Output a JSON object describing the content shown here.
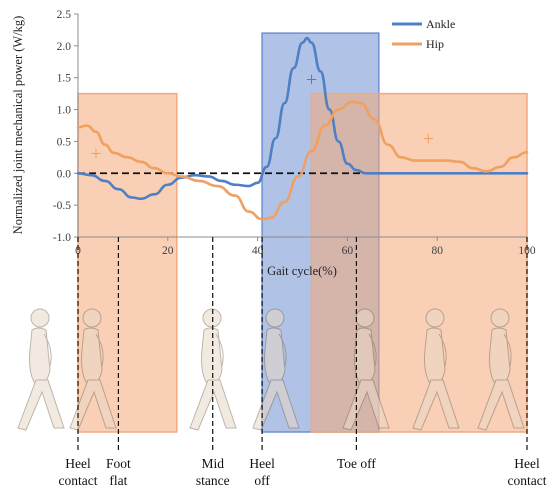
{
  "chart_data": {
    "type": "line",
    "ylabel": "Normalized joint mechanical power (W/kg)",
    "xlabel": "Gait cycle(%)",
    "xlim": [
      0,
      100
    ],
    "ylim": [
      -1.0,
      2.5
    ],
    "x_ticks": [
      "0",
      "20",
      "40",
      "60",
      "80",
      "100"
    ],
    "y_ticks": [
      "-1.0",
      "-0.5",
      "0.0",
      "0.5",
      "1.0",
      "1.5",
      "2.0",
      "2.5"
    ],
    "legend_position": "top-right",
    "grid": false,
    "series": [
      {
        "name": "Ankle",
        "color": "#4f7fc4",
        "points": [
          [
            0,
            0.0
          ],
          [
            3,
            -0.03
          ],
          [
            6,
            -0.12
          ],
          [
            9,
            -0.25
          ],
          [
            12,
            -0.38
          ],
          [
            14,
            -0.4
          ],
          [
            17,
            -0.33
          ],
          [
            20,
            -0.18
          ],
          [
            23,
            -0.07
          ],
          [
            26,
            -0.03
          ],
          [
            29,
            -0.05
          ],
          [
            32,
            -0.12
          ],
          [
            35,
            -0.18
          ],
          [
            38,
            -0.2
          ],
          [
            40,
            -0.15
          ],
          [
            42,
            0.1
          ],
          [
            44,
            0.55
          ],
          [
            46,
            1.1
          ],
          [
            48,
            1.65
          ],
          [
            50,
            2.05
          ],
          [
            51,
            2.12
          ],
          [
            52,
            2.05
          ],
          [
            54,
            1.6
          ],
          [
            56,
            1.0
          ],
          [
            58,
            0.5
          ],
          [
            60,
            0.15
          ],
          [
            62,
            0.05
          ],
          [
            64,
            0.0
          ],
          [
            66,
            0.0
          ],
          [
            70,
            0.0
          ],
          [
            80,
            0.0
          ],
          [
            90,
            0.0
          ],
          [
            100,
            0.0
          ]
        ]
      },
      {
        "name": "Hip",
        "color": "#f0a060",
        "points": [
          [
            0,
            0.72
          ],
          [
            2,
            0.75
          ],
          [
            4,
            0.65
          ],
          [
            6,
            0.45
          ],
          [
            8,
            0.32
          ],
          [
            11,
            0.25
          ],
          [
            14,
            0.18
          ],
          [
            17,
            0.08
          ],
          [
            20,
            0.0
          ],
          [
            23,
            -0.05
          ],
          [
            27,
            -0.12
          ],
          [
            31,
            -0.2
          ],
          [
            35,
            -0.35
          ],
          [
            38,
            -0.6
          ],
          [
            41,
            -0.72
          ],
          [
            43,
            -0.7
          ],
          [
            46,
            -0.45
          ],
          [
            49,
            -0.05
          ],
          [
            52,
            0.35
          ],
          [
            55,
            0.75
          ],
          [
            58,
            1.0
          ],
          [
            61,
            1.12
          ],
          [
            63,
            1.1
          ],
          [
            66,
            0.85
          ],
          [
            69,
            0.45
          ],
          [
            72,
            0.25
          ],
          [
            75,
            0.2
          ],
          [
            78,
            0.2
          ],
          [
            82,
            0.2
          ],
          [
            85,
            0.18
          ],
          [
            88,
            0.08
          ],
          [
            91,
            0.03
          ],
          [
            94,
            0.1
          ],
          [
            97,
            0.25
          ],
          [
            100,
            0.33
          ]
        ]
      }
    ],
    "zero_line": true,
    "regions": [
      {
        "name": "hip positive 1",
        "color": "#f4a97a",
        "x0": 0,
        "x1": 22,
        "y0": -1.0,
        "y1": 1.25
      },
      {
        "name": "ankle positive",
        "color": "#6f8fd0",
        "x0": 41,
        "x1": 67,
        "y0": -1.0,
        "y1": 2.2
      },
      {
        "name": "hip positive 2",
        "color": "#f4a97a",
        "x0": 52,
        "x1": 100,
        "y0": -1.0,
        "y1": 1.25
      }
    ],
    "markers": [
      {
        "series": "Hip",
        "x": 4,
        "y": 0.32,
        "symbol": "+"
      },
      {
        "series": "Ankle",
        "x": 52,
        "y": 1.48,
        "symbol": "+"
      },
      {
        "series": "Hip",
        "x": 78,
        "y": 0.55,
        "symbol": "+"
      }
    ],
    "gait_events": [
      {
        "x": 0,
        "label_lines": [
          "Heel",
          "contact"
        ]
      },
      {
        "x": 9,
        "label_lines": [
          "Foot",
          "flat"
        ]
      },
      {
        "x": 30,
        "label_lines": [
          "Mid",
          "stance"
        ]
      },
      {
        "x": 41,
        "label_lines": [
          "Heel",
          "off"
        ]
      },
      {
        "x": 62,
        "label_lines": [
          "Toe off"
        ]
      },
      {
        "x": 100,
        "label_lines": [
          "Heel",
          "contact"
        ]
      }
    ]
  }
}
